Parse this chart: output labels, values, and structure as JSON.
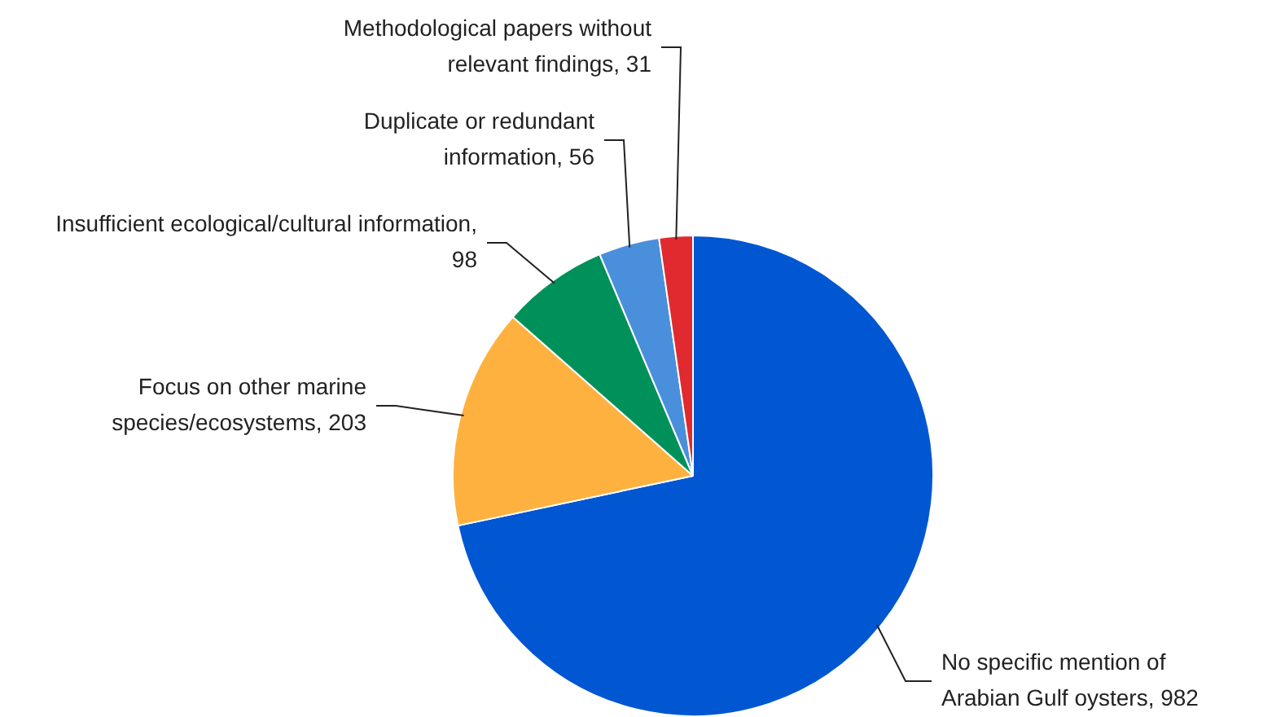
{
  "chart_data": {
    "type": "pie",
    "categories": [
      "No specific mention of Arabian Gulf oysters, 982",
      "Focus on other marine species/ecosystems, 203",
      "Insufficient ecological/cultural information, 98",
      "Duplicate or redundant information, 56",
      "Methodological papers without relevant findings, 31"
    ],
    "values": [
      982,
      203,
      98,
      56,
      31
    ],
    "colors": [
      "#0057d1",
      "#ffb13f",
      "#00915b",
      "#4a8fdb",
      "#e02a2f"
    ],
    "legend": false
  }
}
